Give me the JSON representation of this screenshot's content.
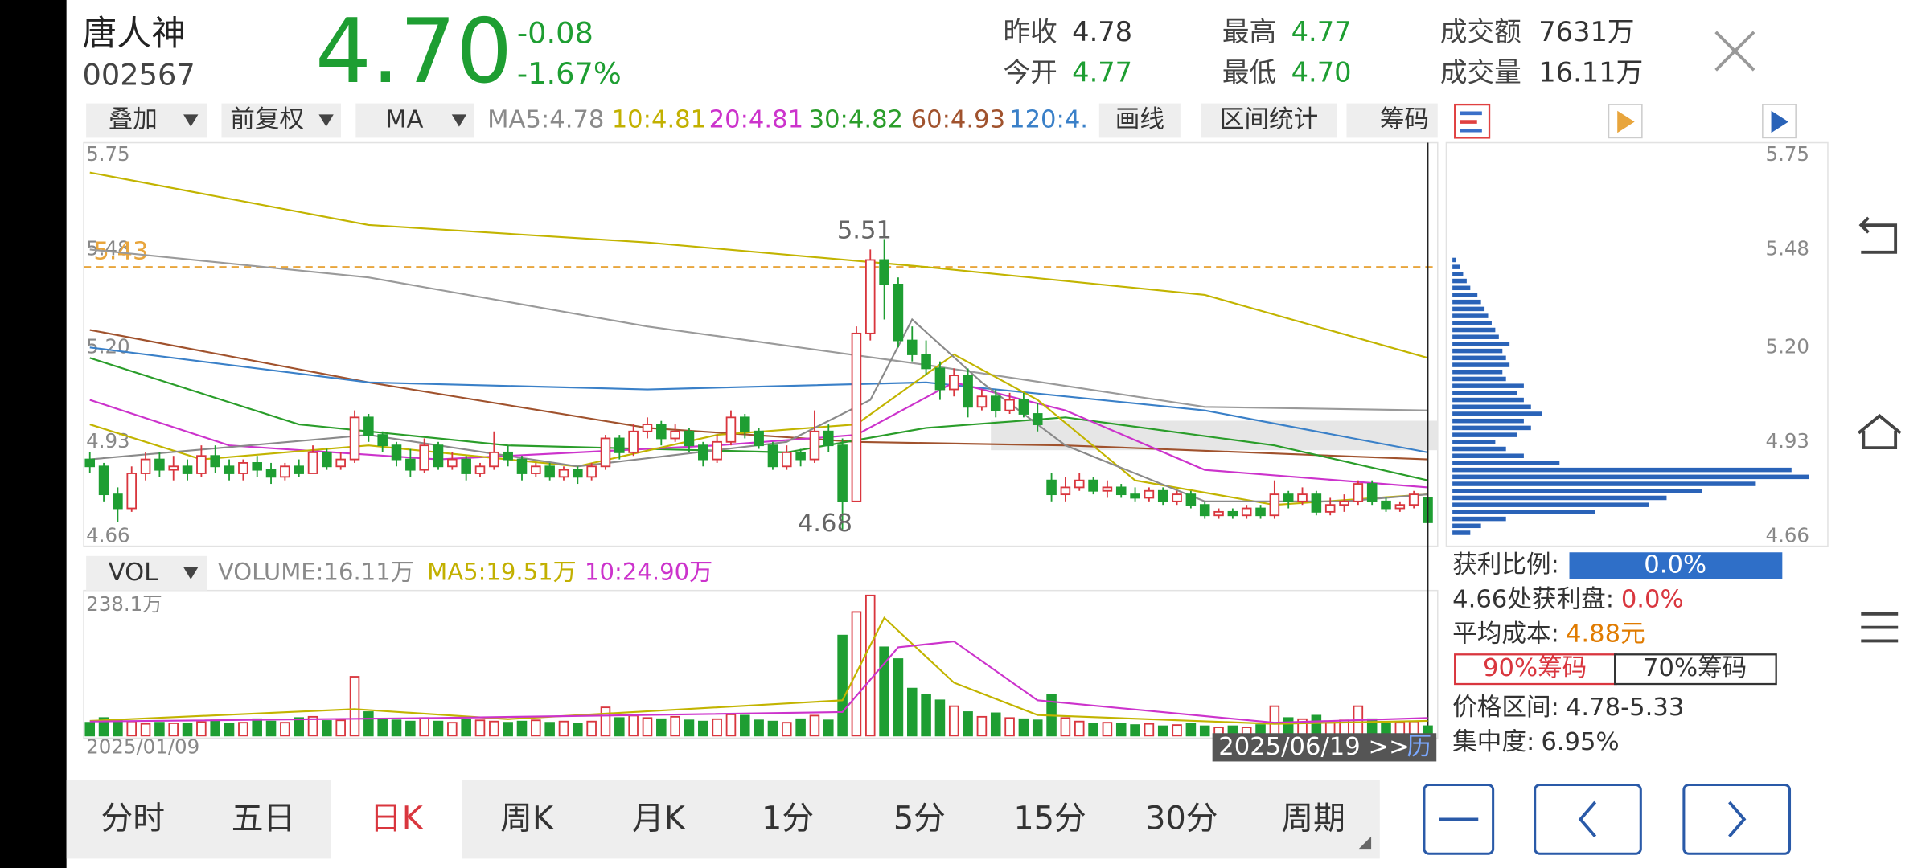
{
  "header": {
    "name": "唐人神",
    "code": "002567",
    "price": "4.70",
    "change": "-0.08",
    "change_pct": "-1.67%",
    "stats": [
      {
        "label": "昨收",
        "value": "4.78"
      },
      {
        "label": "今开",
        "value": "4.77"
      },
      {
        "label": "最高",
        "value": "4.77"
      },
      {
        "label": "最低",
        "value": "4.70"
      },
      {
        "label": "成交额",
        "value": "7631万"
      },
      {
        "label": "成交量",
        "value": "16.11万"
      }
    ]
  },
  "toolbar": {
    "selects": [
      "叠加",
      "前复权",
      "MA"
    ],
    "ma": [
      {
        "text": "MA5:4.78",
        "color": "#8a8a8a"
      },
      {
        "text": "10:4.81",
        "color": "#c2b000"
      },
      {
        "text": "20:4.81",
        "color": "#cc33cc"
      },
      {
        "text": "30:4.82",
        "color": "#2a9d2a"
      },
      {
        "text": "60:4.93",
        "color": "#a0522d"
      },
      {
        "text": "120:4.",
        "color": "#3a80c8"
      }
    ],
    "tools": [
      "画线",
      "区间统计",
      "筹码"
    ]
  },
  "chart_data": {
    "type": "candlestick",
    "ylim": [
      4.66,
      5.75
    ],
    "yticks": [
      4.66,
      4.93,
      {
        "value": 5.2,
        "label": "5.20"
      },
      5.48,
      5.75
    ],
    "up_color": "#d9363e",
    "down_color": "#1e9e32",
    "ohlc": [
      [
        4.88,
        4.86,
        4.9,
        4.84
      ],
      [
        4.86,
        4.78,
        4.87,
        4.76
      ],
      [
        4.78,
        4.74,
        4.8,
        4.7
      ],
      [
        4.74,
        4.84,
        4.86,
        4.73
      ],
      [
        4.84,
        4.88,
        4.9,
        4.82
      ],
      [
        4.88,
        4.85,
        4.9,
        4.83
      ],
      [
        4.85,
        4.86,
        4.89,
        4.82
      ],
      [
        4.86,
        4.84,
        4.88,
        4.82
      ],
      [
        4.84,
        4.89,
        4.92,
        4.83
      ],
      [
        4.89,
        4.86,
        4.92,
        4.84
      ],
      [
        4.86,
        4.84,
        4.88,
        4.82
      ],
      [
        4.84,
        4.87,
        4.88,
        4.82
      ],
      [
        4.87,
        4.85,
        4.89,
        4.83
      ],
      [
        4.85,
        4.83,
        4.87,
        4.81
      ],
      [
        4.83,
        4.86,
        4.87,
        4.82
      ],
      [
        4.86,
        4.84,
        4.88,
        4.83
      ],
      [
        4.84,
        4.9,
        4.92,
        4.84
      ],
      [
        4.9,
        4.86,
        4.91,
        4.85
      ],
      [
        4.86,
        4.88,
        4.9,
        4.85
      ],
      [
        4.88,
        5.0,
        5.02,
        4.87
      ],
      [
        5.0,
        4.95,
        5.01,
        4.93
      ],
      [
        4.95,
        4.92,
        4.96,
        4.9
      ],
      [
        4.92,
        4.88,
        4.93,
        4.86
      ],
      [
        4.88,
        4.85,
        4.91,
        4.83
      ],
      [
        4.85,
        4.92,
        4.94,
        4.84
      ],
      [
        4.92,
        4.86,
        4.93,
        4.85
      ],
      [
        4.86,
        4.88,
        4.9,
        4.85
      ],
      [
        4.88,
        4.84,
        4.89,
        4.82
      ],
      [
        4.84,
        4.86,
        4.87,
        4.83
      ],
      [
        4.86,
        4.9,
        4.96,
        4.85
      ],
      [
        4.9,
        4.88,
        4.92,
        4.86
      ],
      [
        4.88,
        4.84,
        4.89,
        4.82
      ],
      [
        4.84,
        4.86,
        4.87,
        4.83
      ],
      [
        4.86,
        4.83,
        4.87,
        4.82
      ],
      [
        4.83,
        4.85,
        4.86,
        4.82
      ],
      [
        4.85,
        4.83,
        4.86,
        4.81
      ],
      [
        4.83,
        4.86,
        4.87,
        4.82
      ],
      [
        4.86,
        4.94,
        4.95,
        4.85
      ],
      [
        4.94,
        4.9,
        4.95,
        4.88
      ],
      [
        4.9,
        4.96,
        4.98,
        4.89
      ],
      [
        4.96,
        4.98,
        5.0,
        4.94
      ],
      [
        4.98,
        4.94,
        4.99,
        4.92
      ],
      [
        4.94,
        4.96,
        4.98,
        4.93
      ],
      [
        4.96,
        4.92,
        4.97,
        4.9
      ],
      [
        4.92,
        4.88,
        4.93,
        4.86
      ],
      [
        4.88,
        4.93,
        4.95,
        4.87
      ],
      [
        4.93,
        5.0,
        5.02,
        4.92
      ],
      [
        5.0,
        4.96,
        5.01,
        4.94
      ],
      [
        4.96,
        4.92,
        4.97,
        4.91
      ],
      [
        4.92,
        4.86,
        4.93,
        4.85
      ],
      [
        4.86,
        4.9,
        4.92,
        4.85
      ],
      [
        4.9,
        4.88,
        4.91,
        4.86
      ],
      [
        4.88,
        4.96,
        5.02,
        4.87
      ],
      [
        4.96,
        4.92,
        4.98,
        4.9
      ],
      [
        4.92,
        4.76,
        4.94,
        4.68
      ],
      [
        4.76,
        5.24,
        5.26,
        4.76
      ],
      [
        5.24,
        5.45,
        5.48,
        5.22
      ],
      [
        5.45,
        5.38,
        5.51,
        5.28
      ],
      [
        5.38,
        5.22,
        5.4,
        5.2
      ],
      [
        5.22,
        5.18,
        5.26,
        5.16
      ],
      [
        5.18,
        5.14,
        5.22,
        5.12
      ],
      [
        5.14,
        5.08,
        5.16,
        5.05
      ],
      [
        5.08,
        5.12,
        5.14,
        5.06
      ],
      [
        5.12,
        5.03,
        5.14,
        5.0
      ],
      [
        5.03,
        5.06,
        5.08,
        5.02
      ],
      [
        5.06,
        5.02,
        5.08,
        5.0
      ],
      [
        5.02,
        5.05,
        5.07,
        5.01
      ],
      [
        5.05,
        5.01,
        5.07,
        5.0
      ],
      [
        5.01,
        4.98,
        5.04,
        4.96
      ],
      [
        4.82,
        4.78,
        4.84,
        4.76
      ],
      [
        4.78,
        4.8,
        4.83,
        4.76
      ],
      [
        4.8,
        4.82,
        4.84,
        4.79
      ],
      [
        4.82,
        4.79,
        4.83,
        4.78
      ],
      [
        4.79,
        4.8,
        4.82,
        4.77
      ],
      [
        4.8,
        4.78,
        4.81,
        4.77
      ],
      [
        4.78,
        4.77,
        4.8,
        4.76
      ],
      [
        4.77,
        4.79,
        4.8,
        4.76
      ],
      [
        4.79,
        4.76,
        4.8,
        4.75
      ],
      [
        4.76,
        4.78,
        4.79,
        4.75
      ],
      [
        4.78,
        4.75,
        4.79,
        4.74
      ],
      [
        4.75,
        4.72,
        4.76,
        4.71
      ],
      [
        4.72,
        4.73,
        4.74,
        4.71
      ],
      [
        4.73,
        4.72,
        4.74,
        4.71
      ],
      [
        4.72,
        4.74,
        4.75,
        4.71
      ],
      [
        4.74,
        4.72,
        4.75,
        4.71
      ],
      [
        4.72,
        4.78,
        4.82,
        4.71
      ],
      [
        4.78,
        4.76,
        4.79,
        4.74
      ],
      [
        4.76,
        4.78,
        4.8,
        4.75
      ],
      [
        4.78,
        4.73,
        4.79,
        4.72
      ],
      [
        4.73,
        4.75,
        4.77,
        4.72
      ],
      [
        4.75,
        4.76,
        4.78,
        4.73
      ],
      [
        4.76,
        4.81,
        4.82,
        4.75
      ],
      [
        4.81,
        4.76,
        4.82,
        4.75
      ],
      [
        4.76,
        4.74,
        4.77,
        4.73
      ],
      [
        4.74,
        4.75,
        4.76,
        4.73
      ],
      [
        4.75,
        4.78,
        4.79,
        4.74
      ],
      [
        4.77,
        4.7,
        4.77,
        4.7
      ]
    ],
    "ref_line": {
      "value": 5.43,
      "color": "#e8a53c"
    },
    "high_label": 5.51,
    "low_label": 4.68,
    "ma_lines": [
      {
        "color": "#c2b400",
        "x": [
          0,
          20,
          40,
          60,
          80,
          96
        ],
        "values": [
          5.7,
          5.55,
          5.5,
          5.43,
          5.35,
          5.17
        ]
      },
      {
        "color": "#9a9a9a",
        "x": [
          0,
          20,
          40,
          60,
          80,
          96
        ],
        "values": [
          5.48,
          5.4,
          5.26,
          5.15,
          5.03,
          5.02
        ]
      },
      {
        "color": "#a0522d",
        "x": [
          0,
          20,
          40,
          55,
          70,
          96
        ],
        "values": [
          5.25,
          5.1,
          4.97,
          4.93,
          4.92,
          4.88
        ]
      },
      {
        "color": "#3a80c8",
        "x": [
          0,
          20,
          40,
          60,
          80,
          96
        ],
        "values": [
          5.2,
          5.1,
          5.08,
          5.1,
          5.02,
          4.9
        ]
      },
      {
        "color": "#2a9d2a",
        "x": [
          0,
          15,
          30,
          50,
          60,
          70,
          85,
          96
        ],
        "values": [
          5.17,
          4.98,
          4.92,
          4.9,
          4.97,
          5.0,
          4.92,
          4.82
        ]
      },
      {
        "color": "#cc33cc",
        "x": [
          0,
          10,
          25,
          45,
          55,
          62,
          70,
          80,
          96
        ],
        "values": [
          5.05,
          4.92,
          4.88,
          4.92,
          4.95,
          5.1,
          5.02,
          4.85,
          4.8
        ]
      },
      {
        "color": "#c2b400",
        "x": [
          0,
          8,
          20,
          35,
          45,
          55,
          62,
          68,
          75,
          85,
          96
        ],
        "values": [
          4.98,
          4.88,
          4.92,
          4.86,
          4.95,
          4.98,
          5.18,
          5.05,
          4.82,
          4.75,
          4.78
        ]
      },
      {
        "color": "#8a8a8a",
        "x": [
          0,
          20,
          35,
          50,
          56,
          59,
          64,
          70,
          80,
          90,
          96
        ],
        "values": [
          4.88,
          4.95,
          4.86,
          4.93,
          5.05,
          5.28,
          5.1,
          4.92,
          4.76,
          4.76,
          4.78
        ]
      }
    ]
  },
  "volume": {
    "type": "bar",
    "select": "VOL",
    "items": [
      {
        "text": "VOLUME:16.11万",
        "color": "#8a8a8a"
      },
      {
        "text": "MA5:19.51万",
        "color": "#c2b000"
      },
      {
        "text": "10:24.90万",
        "color": "#cc33cc"
      }
    ],
    "ylim": [
      0,
      {
        "value": 238.1,
        "label": "238.1万"
      }
    ],
    "values": [
      22,
      30,
      25,
      24,
      20,
      22,
      21,
      20,
      23,
      26,
      20,
      22,
      28,
      24,
      22,
      30,
      32,
      25,
      26,
      100,
      40,
      28,
      26,
      24,
      30,
      24,
      22,
      28,
      26,
      24,
      22,
      24,
      26,
      22,
      24,
      20,
      24,
      48,
      30,
      34,
      30,
      28,
      32,
      26,
      24,
      28,
      36,
      34,
      26,
      24,
      22,
      28,
      34,
      26,
      170,
      210,
      238.1,
      150,
      130,
      80,
      70,
      60,
      50,
      40,
      32,
      38,
      30,
      28,
      26,
      70,
      30,
      24,
      20,
      22,
      20,
      18,
      20,
      16,
      18,
      20,
      16,
      14,
      16,
      14,
      18,
      50,
      30,
      28,
      34,
      22,
      26,
      50,
      28,
      20,
      22,
      24,
      16.11
    ],
    "ma_lines": [
      {
        "color": "#c2b400",
        "x": [
          0,
          19,
          30,
          54,
          57,
          62,
          68,
          85,
          96
        ],
        "values": [
          25,
          45,
          28,
          60,
          200,
          90,
          35,
          20,
          25
        ]
      },
      {
        "color": "#cc33cc",
        "x": [
          0,
          25,
          54,
          58,
          62,
          68,
          85,
          96
        ],
        "values": [
          24,
          30,
          40,
          150,
          160,
          60,
          22,
          30
        ]
      }
    ],
    "start_date": "2025/01/09",
    "end_date": "2025/06/19 >>",
    "end_suffix": "历"
  },
  "chips": {
    "type": "bar",
    "color": "#2a63b8",
    "ylim": [
      4.66,
      5.75
    ],
    "yticks": [
      4.66,
      4.93,
      {
        "value": 5.2,
        "label": "5.20"
      },
      5.48,
      5.75
    ],
    "prices": [
      4.67,
      4.69,
      4.71,
      4.73,
      4.75,
      4.77,
      4.79,
      4.81,
      4.83,
      4.85,
      4.87,
      4.89,
      4.91,
      4.93,
      4.95,
      4.97,
      4.99,
      5.01,
      5.03,
      5.05,
      5.07,
      5.09,
      5.11,
      5.13,
      5.15,
      5.17,
      5.19,
      5.21,
      5.23,
      5.25,
      5.27,
      5.29,
      5.31,
      5.33,
      5.35,
      5.37,
      5.39,
      5.41,
      5.43,
      5.45
    ],
    "values": [
      5,
      8,
      15,
      40,
      55,
      60,
      70,
      85,
      100,
      95,
      30,
      20,
      15,
      12,
      18,
      22,
      20,
      25,
      22,
      20,
      18,
      20,
      15,
      14,
      16,
      15,
      14,
      16,
      13,
      12,
      11,
      10,
      9,
      8,
      7,
      5,
      4,
      3,
      2,
      1
    ]
  },
  "info": {
    "profit_ratio_label": "获利比例:",
    "profit_ratio": "0.0%",
    "profit_at_label": "4.66处获利盘:",
    "profit_at": "0.0%",
    "avg_cost_label": "平均成本:",
    "avg_cost": "4.88元",
    "buttons": [
      "90%筹码",
      "70%筹码"
    ],
    "range_label": "价格区间:",
    "range": "4.78-5.33",
    "concentration_label": "集中度:",
    "concentration": "6.95%"
  },
  "tabs": {
    "items": [
      "分时",
      "五日",
      "日K",
      "周K",
      "月K",
      "1分",
      "5分",
      "15分",
      "30分",
      "周期"
    ],
    "active": 2
  }
}
